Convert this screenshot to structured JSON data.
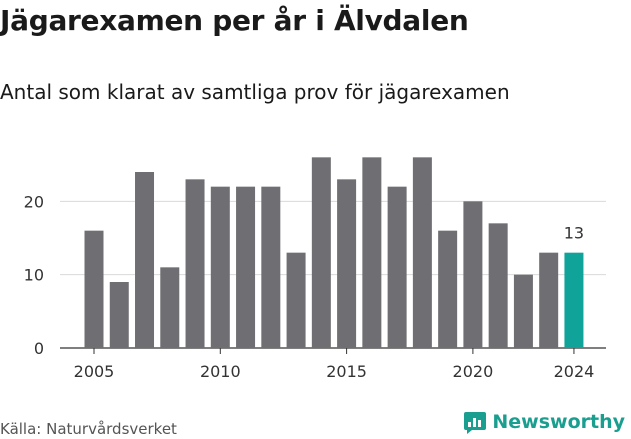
{
  "title": "Jägarexamen per år i Älvdalen",
  "subtitle": "Antal som klarat av samtliga prov för jägarexamen",
  "source": "Källa: Naturvårdsverket",
  "brand": "Newsworthy",
  "colors": {
    "bar": "#6f6e72",
    "highlight": "#0fa39a",
    "grid": "#d9d9d9",
    "brand": "#1a9e8f"
  },
  "chart_data": {
    "type": "bar",
    "x": [
      2005,
      2006,
      2007,
      2008,
      2009,
      2010,
      2011,
      2012,
      2013,
      2014,
      2015,
      2016,
      2017,
      2018,
      2019,
      2020,
      2021,
      2022,
      2023,
      2024
    ],
    "values": [
      16,
      9,
      24,
      11,
      23,
      22,
      22,
      22,
      13,
      26,
      23,
      26,
      22,
      26,
      16,
      20,
      17,
      10,
      13,
      13
    ],
    "highlight_index": 19,
    "data_labels": [
      {
        "index": 19,
        "text": "13"
      }
    ],
    "xticks": [
      "2005",
      "2010",
      "2015",
      "2020",
      "2024"
    ],
    "yticks": [
      "0",
      "10",
      "20"
    ],
    "ylim": [
      0,
      27
    ],
    "grid": true,
    "title": "Jägarexamen per år i Älvdalen",
    "xlabel": "",
    "ylabel": ""
  }
}
